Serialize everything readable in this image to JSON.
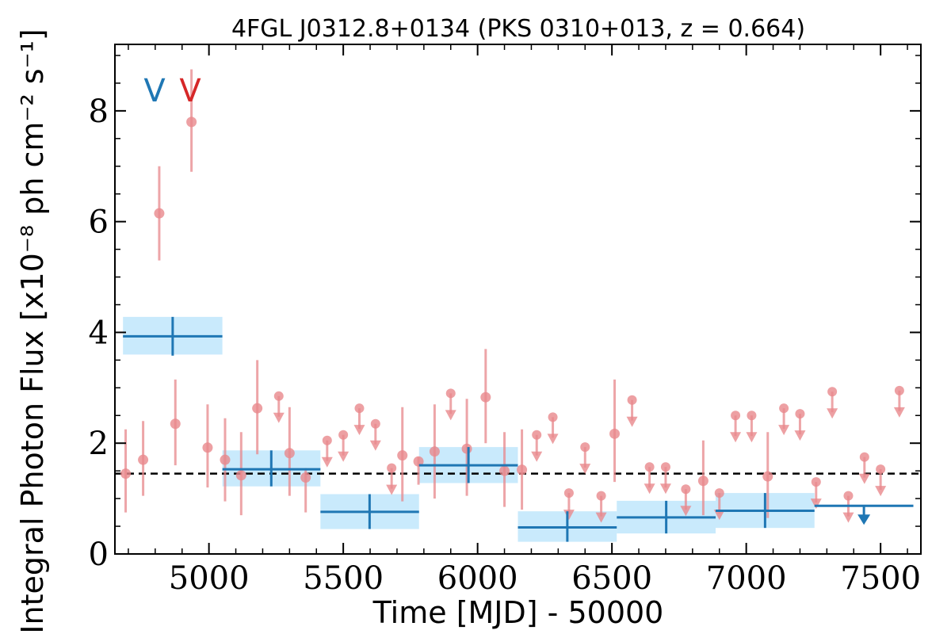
{
  "chart_data": {
    "type": "scatter",
    "title": "4FGL J0312.8+0134 (PKS 0310+013, z = 0.664)",
    "xlabel": "Time [MJD] - 50000",
    "ylabel": "Integral Photon Flux [x10⁻⁸ ph cm⁻² s⁻¹]",
    "xlim": [
      4650,
      7650
    ],
    "ylim": [
      0,
      9.2
    ],
    "xticks": [
      5000,
      5500,
      6000,
      6500,
      7000,
      7500
    ],
    "xtick_labels": [
      "5000",
      "5500",
      "6000",
      "6500",
      "7000",
      "7500"
    ],
    "yticks": [
      0,
      2,
      4,
      6,
      8
    ],
    "ytick_labels": [
      "0",
      "2",
      "4",
      "6",
      "8"
    ],
    "grid": false,
    "mean_flux": 1.45,
    "event_markers": [
      {
        "label": "V",
        "color": "#1f77b4"
      },
      {
        "label": "V",
        "color": "#d62728"
      }
    ],
    "series": [
      {
        "color": "#e8888c",
        "detections": [
          {
            "x": 4690,
            "y": 1.45,
            "lo": 0.75,
            "hi": 2.25
          },
          {
            "x": 4755,
            "y": 1.7,
            "lo": 1.05,
            "hi": 2.4
          },
          {
            "x": 4815,
            "y": 6.15,
            "lo": 5.3,
            "hi": 7.0
          },
          {
            "x": 4875,
            "y": 2.35,
            "lo": 1.6,
            "hi": 3.15
          },
          {
            "x": 4935,
            "y": 7.8,
            "lo": 6.9,
            "hi": 8.75
          },
          {
            "x": 4995,
            "y": 1.92,
            "lo": 1.2,
            "hi": 2.7
          },
          {
            "x": 5060,
            "y": 1.7,
            "lo": 0.95,
            "hi": 2.45
          },
          {
            "x": 5120,
            "y": 1.42,
            "lo": 0.7,
            "hi": 2.2
          },
          {
            "x": 5180,
            "y": 2.63,
            "lo": 1.8,
            "hi": 3.5
          },
          {
            "x": 5300,
            "y": 1.82,
            "lo": 1.05,
            "hi": 2.65
          },
          {
            "x": 5360,
            "y": 1.38,
            "lo": 0.75,
            "hi": 1.55
          },
          {
            "x": 5720,
            "y": 1.78,
            "lo": 0.95,
            "hi": 2.65
          },
          {
            "x": 5780,
            "y": 1.67,
            "lo": 1.25,
            "hi": 1.75
          },
          {
            "x": 5840,
            "y": 1.85,
            "lo": 1.0,
            "hi": 2.7
          },
          {
            "x": 5960,
            "y": 1.9,
            "lo": 1.05,
            "hi": 2.8
          },
          {
            "x": 6030,
            "y": 2.83,
            "lo": 2.0,
            "hi": 3.7
          },
          {
            "x": 6100,
            "y": 1.5,
            "lo": 0.85,
            "hi": 2.2
          },
          {
            "x": 6165,
            "y": 1.52,
            "lo": 0.8,
            "hi": 2.25
          },
          {
            "x": 6510,
            "y": 2.17,
            "lo": 1.3,
            "hi": 3.15
          },
          {
            "x": 6840,
            "y": 1.32,
            "lo": 0.7,
            "hi": 2.05
          },
          {
            "x": 7080,
            "y": 1.4,
            "lo": 0.65,
            "hi": 2.2
          }
        ],
        "upper_limits": [
          {
            "x": 5260,
            "y": 2.85
          },
          {
            "x": 5440,
            "y": 2.05
          },
          {
            "x": 5500,
            "y": 2.15
          },
          {
            "x": 5560,
            "y": 2.63
          },
          {
            "x": 5620,
            "y": 2.35
          },
          {
            "x": 5680,
            "y": 1.55
          },
          {
            "x": 5900,
            "y": 2.9
          },
          {
            "x": 6220,
            "y": 2.15
          },
          {
            "x": 6280,
            "y": 2.47
          },
          {
            "x": 6340,
            "y": 1.1
          },
          {
            "x": 6400,
            "y": 1.93
          },
          {
            "x": 6460,
            "y": 1.05
          },
          {
            "x": 6575,
            "y": 2.78
          },
          {
            "x": 6640,
            "y": 1.57
          },
          {
            "x": 6700,
            "y": 1.57
          },
          {
            "x": 6775,
            "y": 1.17
          },
          {
            "x": 6900,
            "y": 1.1
          },
          {
            "x": 6960,
            "y": 2.5
          },
          {
            "x": 7020,
            "y": 2.5
          },
          {
            "x": 7140,
            "y": 2.63
          },
          {
            "x": 7200,
            "y": 2.53
          },
          {
            "x": 7260,
            "y": 1.3
          },
          {
            "x": 7320,
            "y": 2.93
          },
          {
            "x": 7380,
            "y": 1.05
          },
          {
            "x": 7440,
            "y": 1.75
          },
          {
            "x": 7500,
            "y": 1.53
          },
          {
            "x": 7570,
            "y": 2.95
          }
        ]
      },
      {
        "color": "#1f77b4",
        "band_color": "#bfe6fb",
        "bins": [
          {
            "x0": 4680,
            "x1": 5050,
            "x": 4865,
            "y": 3.93,
            "lo": 3.58,
            "hi": 4.28,
            "ylo": 3.6,
            "yhi": 4.28
          },
          {
            "x0": 5050,
            "x1": 5415,
            "x": 5232,
            "y": 1.53,
            "lo": 1.22,
            "hi": 1.87,
            "ylo": 1.22,
            "yhi": 1.87
          },
          {
            "x0": 5415,
            "x1": 5782,
            "x": 5598,
            "y": 0.76,
            "lo": 0.45,
            "hi": 1.08,
            "ylo": 0.45,
            "yhi": 1.08
          },
          {
            "x0": 5782,
            "x1": 6150,
            "x": 5966,
            "y": 1.6,
            "lo": 1.28,
            "hi": 1.93,
            "ylo": 1.28,
            "yhi": 1.93
          },
          {
            "x0": 6150,
            "x1": 6518,
            "x": 6334,
            "y": 0.48,
            "lo": 0.22,
            "hi": 0.77,
            "ylo": 0.22,
            "yhi": 0.77
          },
          {
            "x0": 6518,
            "x1": 6886,
            "x": 6702,
            "y": 0.66,
            "lo": 0.37,
            "hi": 0.96,
            "ylo": 0.37,
            "yhi": 0.96
          },
          {
            "x0": 6886,
            "x1": 7254,
            "x": 7070,
            "y": 0.78,
            "lo": 0.47,
            "hi": 1.1,
            "ylo": 0.47,
            "yhi": 1.1
          }
        ],
        "upper_limit_bin": {
          "x0": 7254,
          "x1": 7622,
          "x": 7438,
          "y": 0.87
        }
      }
    ]
  }
}
